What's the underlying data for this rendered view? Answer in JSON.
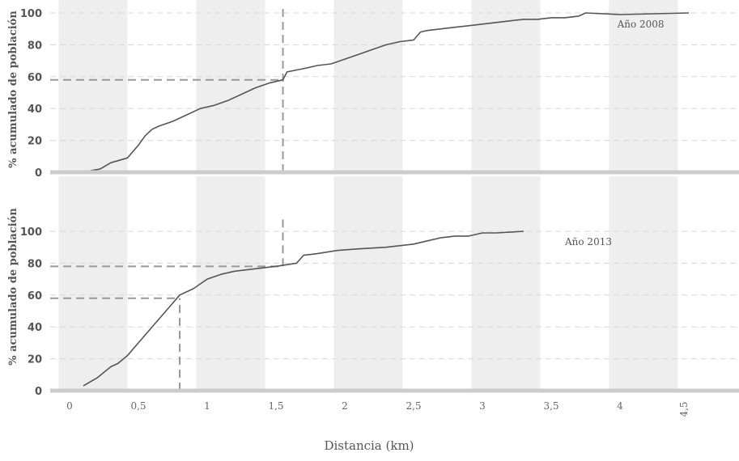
{
  "chart_data": [
    {
      "type": "line",
      "annotation": "Año 2008",
      "ylabel": "% acumulado de población",
      "xlabel": "Distancia (km)",
      "xlim": [
        -0.08,
        4.5
      ],
      "ylim": [
        0,
        100
      ],
      "yticks": [
        0,
        20,
        40,
        60,
        80,
        100
      ],
      "grid": true,
      "reference_lines": [
        {
          "axis": "y",
          "value": 58,
          "x_to": 1.55
        },
        {
          "axis": "x",
          "value": 1.55,
          "y_from": 0,
          "y_to": 105
        }
      ],
      "series": [
        {
          "x": [
            0.15,
            0.22,
            0.28,
            0.3,
            0.42,
            0.5,
            0.55,
            0.6,
            0.65,
            0.75,
            0.85,
            0.95,
            1.05,
            1.15,
            1.25,
            1.35,
            1.45,
            1.55,
            1.58,
            1.7,
            1.8,
            1.9,
            2.0,
            2.1,
            2.2,
            2.3,
            2.4,
            2.5,
            2.55,
            2.6,
            2.7,
            2.8,
            2.9,
            3.0,
            3.1,
            3.2,
            3.3,
            3.4,
            3.5,
            3.6,
            3.7,
            3.75,
            4.0,
            4.5
          ],
          "y": [
            1,
            2,
            5,
            6,
            9,
            17,
            23,
            27,
            29,
            32,
            36,
            40,
            42,
            45,
            49,
            53,
            56,
            58,
            63,
            65,
            67,
            68,
            71,
            74,
            77,
            80,
            82,
            83,
            88,
            89,
            90,
            91,
            92,
            93,
            94,
            95,
            96,
            96,
            97,
            97,
            98,
            100,
            99,
            100
          ]
        }
      ]
    },
    {
      "type": "line",
      "annotation": "Año 2013",
      "ylabel": "% acumulado de población",
      "xlabel": "Distancia (km)",
      "xlim": [
        -0.08,
        4.5
      ],
      "ylim": [
        0,
        100
      ],
      "yticks": [
        0,
        20,
        40,
        60,
        80,
        100
      ],
      "xticks": [
        "0",
        "0,5",
        "1",
        "1,5",
        "2",
        "2,5",
        "3",
        "3,5",
        "4",
        "4,5"
      ],
      "grid": true,
      "reference_lines": [
        {
          "axis": "y",
          "value": 78,
          "x_to": 1.55
        },
        {
          "axis": "y",
          "value": 58,
          "x_to": 0.8
        },
        {
          "axis": "x",
          "value": 0.8,
          "y_from": 0,
          "y_to": 58
        },
        {
          "axis": "x",
          "value": 1.55,
          "y_from": 78,
          "y_to": 108
        }
      ],
      "series": [
        {
          "x": [
            0.1,
            0.2,
            0.3,
            0.35,
            0.42,
            0.5,
            0.58,
            0.65,
            0.72,
            0.8,
            0.9,
            1.0,
            1.1,
            1.2,
            1.3,
            1.4,
            1.5,
            1.65,
            1.7,
            1.8,
            1.95,
            2.1,
            2.3,
            2.5,
            2.6,
            2.7,
            2.8,
            2.9,
            3.0,
            3.1,
            3.3
          ],
          "y": [
            3,
            8,
            15,
            17,
            22,
            30,
            38,
            45,
            52,
            60,
            64,
            70,
            73,
            75,
            76,
            77,
            78,
            80,
            85,
            86,
            88,
            89,
            90,
            92,
            94,
            96,
            97,
            97,
            99,
            99,
            100
          ]
        }
      ]
    }
  ]
}
